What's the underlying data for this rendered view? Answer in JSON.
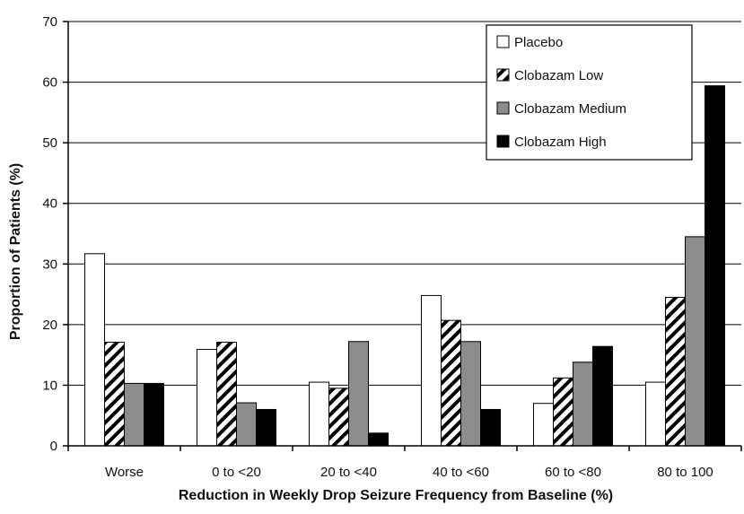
{
  "chart_data": {
    "type": "bar",
    "title": "",
    "xlabel": "Reduction in Weekly Drop Seizure Frequency from Baseline (%)",
    "ylabel": "Proportion of Patients (%)",
    "ylim": [
      0,
      70
    ],
    "yticks": [
      0,
      10,
      20,
      30,
      40,
      50,
      60,
      70
    ],
    "grid": true,
    "legend_position": "top-right",
    "categories": [
      "Worse",
      "0 to <20",
      "20 to <40",
      "40 to <60",
      "60 to <80",
      "80 to 100"
    ],
    "series": [
      {
        "name": "Placebo",
        "pattern": "white",
        "values": [
          31.7,
          15.9,
          10.5,
          24.8,
          7.0,
          10.5
        ]
      },
      {
        "name": "Clobazam Low",
        "pattern": "hatch",
        "values": [
          17.1,
          17.1,
          9.5,
          20.7,
          11.2,
          24.5
        ]
      },
      {
        "name": "Clobazam Medium",
        "pattern": "gray",
        "values": [
          10.3,
          7.1,
          17.2,
          17.2,
          13.8,
          34.5
        ]
      },
      {
        "name": "Clobazam High",
        "pattern": "black",
        "values": [
          10.3,
          6.0,
          2.1,
          6.0,
          16.4,
          59.4
        ]
      }
    ]
  },
  "colors": {
    "white_fill": "#ffffff",
    "gray_fill": "#8c8c8c",
    "black_fill": "#000000",
    "axis": "#000000"
  }
}
